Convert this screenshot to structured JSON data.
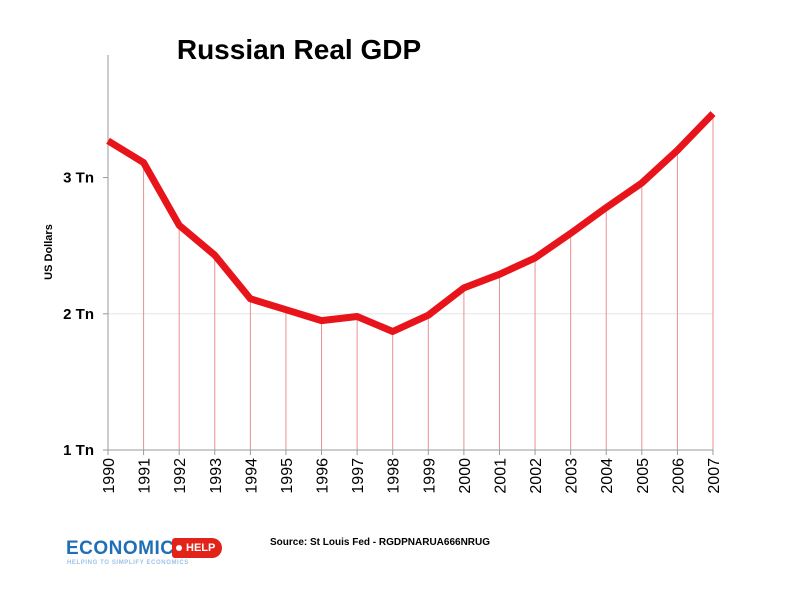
{
  "chart_data": {
    "type": "line",
    "title": "Russian Real GDP",
    "ylabel": "US Dollars",
    "xlabel": "",
    "x": [
      "1990",
      "1991",
      "1992",
      "1993",
      "1994",
      "1995",
      "1996",
      "1997",
      "1998",
      "1999",
      "2000",
      "2001",
      "2002",
      "2003",
      "2004",
      "2005",
      "2006",
      "2007"
    ],
    "series": [
      {
        "values": [
          3.27,
          3.11,
          2.65,
          2.43,
          2.11,
          2.03,
          1.95,
          1.98,
          1.87,
          1.99,
          2.19,
          2.29,
          2.41,
          2.59,
          2.78,
          2.96,
          3.2,
          3.47
        ]
      }
    ],
    "ylim": [
      1,
      3.9
    ],
    "yticks": [
      {
        "value": 1,
        "label": "1 Tn"
      },
      {
        "value": 2,
        "label": "2 Tn"
      },
      {
        "value": 3,
        "label": "3 Tn"
      }
    ],
    "grid": "vertical lines at each year",
    "line_color": "#e8141b",
    "gridline_color": "#e99090"
  },
  "source": "Source: St Louis Fed - RGDPNARUA666NRUG",
  "logo": {
    "word": "ECONOMICS",
    "tag": "HELP",
    "tagline": "HELPING TO SIMPLIFY ECONOMICS",
    "word_color": "#1f6fb8",
    "tag_color": "#e2231a"
  }
}
